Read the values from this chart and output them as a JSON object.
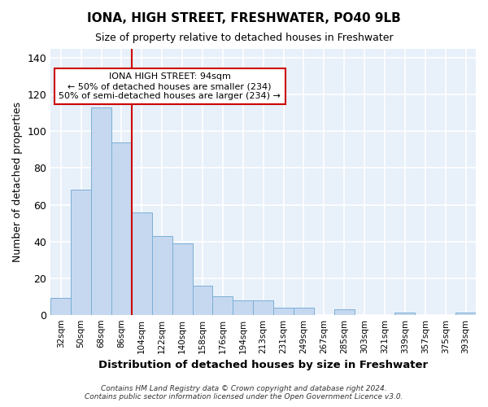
{
  "title": "IONA, HIGH STREET, FRESHWATER, PO40 9LB",
  "subtitle": "Size of property relative to detached houses in Freshwater",
  "xlabel": "Distribution of detached houses by size in Freshwater",
  "ylabel": "Number of detached properties",
  "categories": [
    "32sqm",
    "50sqm",
    "68sqm",
    "86sqm",
    "104sqm",
    "122sqm",
    "140sqm",
    "158sqm",
    "176sqm",
    "194sqm",
    "213sqm",
    "231sqm",
    "249sqm",
    "267sqm",
    "285sqm",
    "303sqm",
    "321sqm",
    "339sqm",
    "357sqm",
    "375sqm",
    "393sqm"
  ],
  "values": [
    9,
    68,
    113,
    94,
    56,
    43,
    39,
    16,
    10,
    8,
    8,
    4,
    4,
    0,
    3,
    0,
    0,
    1,
    0,
    0,
    1
  ],
  "bar_color": "#c5d8f0",
  "bar_edge_color": "#7bafd4",
  "background_color": "#e8f0fa",
  "grid_color": "#ffffff",
  "vline_color": "#cc0000",
  "annotation_title": "IONA HIGH STREET: 94sqm",
  "annotation_line1": "← 50% of detached houses are smaller (234)",
  "annotation_line2": "50% of semi-detached houses are larger (234) →",
  "annotation_box_facecolor": "#ffffff",
  "annotation_box_edgecolor": "#cc0000",
  "ylim": [
    0,
    145
  ],
  "yticks": [
    0,
    20,
    40,
    60,
    80,
    100,
    120,
    140
  ],
  "footer_line1": "Contains HM Land Registry data © Crown copyright and database right 2024.",
  "footer_line2": "Contains public sector information licensed under the Open Government Licence v3.0.",
  "fig_facecolor": "#ffffff"
}
